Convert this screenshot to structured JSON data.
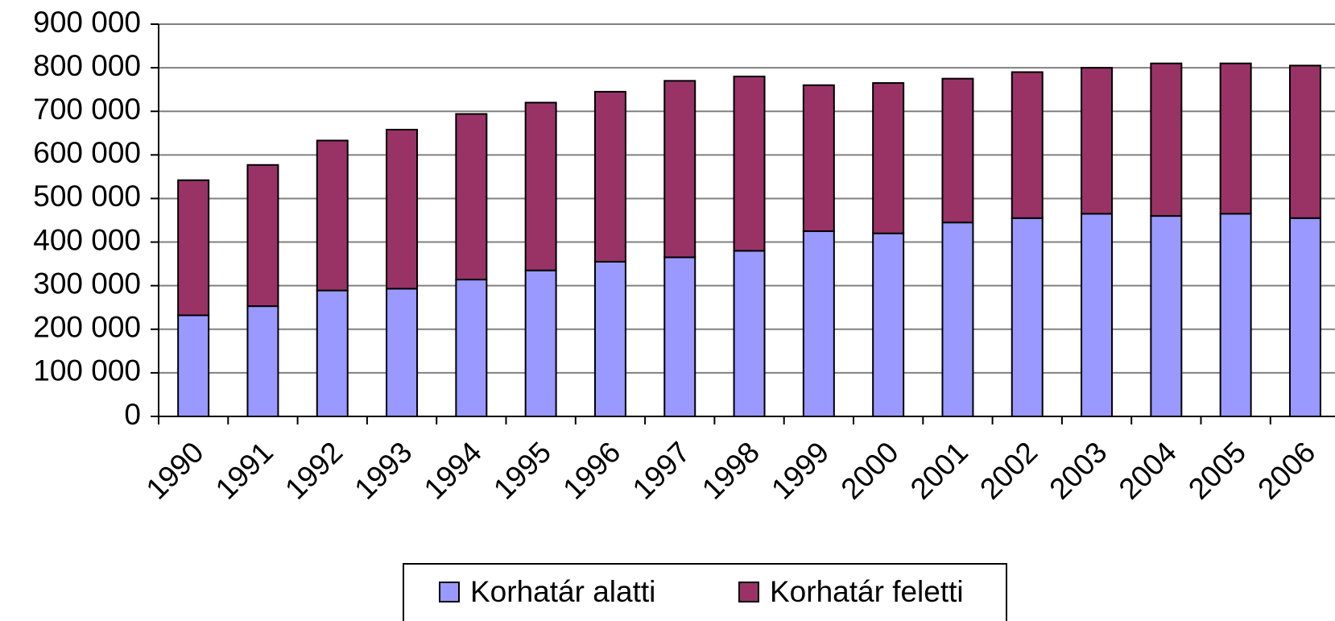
{
  "chart_data": {
    "type": "stacked_bar",
    "categories": [
      "1990",
      "1991",
      "1992",
      "1993",
      "1994",
      "1995",
      "1996",
      "1997",
      "1998",
      "1999",
      "2000",
      "2001",
      "2002",
      "2003",
      "2004",
      "2005",
      "2006"
    ],
    "series": [
      {
        "name": "Korhatár alatti",
        "color": "#9999ff",
        "values": [
          232000,
          253000,
          289000,
          293000,
          314000,
          335000,
          355000,
          365000,
          380000,
          425000,
          420000,
          445000,
          455000,
          465000,
          460000,
          465000,
          455000
        ]
      },
      {
        "name": "Korhatár feletti",
        "color": "#993366",
        "values": [
          310000,
          324000,
          344000,
          365000,
          380000,
          385000,
          390000,
          405000,
          400000,
          335000,
          345000,
          330000,
          335000,
          335000,
          350000,
          345000,
          350000
        ]
      }
    ],
    "ylim": [
      0,
      900000
    ],
    "yticks": [
      0,
      {
        "value": 100000,
        "label": "100 000"
      },
      {
        "value": 200000,
        "label": "200 000"
      },
      {
        "value": 300000,
        "label": "300 000"
      },
      {
        "value": 400000,
        "label": "400 000"
      },
      {
        "value": 500000,
        "label": "500 000"
      },
      {
        "value": 600000,
        "label": "600 000"
      },
      {
        "value": 700000,
        "label": "700 000"
      },
      {
        "value": 800000,
        "label": "800 000"
      },
      {
        "value": 900000,
        "label": "900 000"
      }
    ],
    "grid": true,
    "legend": "bottom"
  }
}
